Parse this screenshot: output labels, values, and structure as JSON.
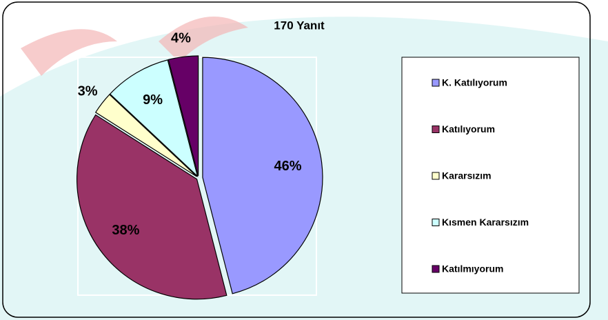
{
  "chart_data": {
    "type": "pie",
    "title": "170 Yanıt",
    "categories": [
      "K. Katılıyorum",
      "Katılıyorum",
      "Kararsızım",
      "Kısmen Kararsızım",
      "Katılmıyorum"
    ],
    "values": [
      46,
      38,
      3,
      9,
      4
    ],
    "value_labels": [
      "46%",
      "38%",
      "3%",
      "9%",
      "4%"
    ],
    "colors": [
      "#9999ff",
      "#993366",
      "#ffffcc",
      "#ccffff",
      "#660066"
    ],
    "legend": "right"
  }
}
